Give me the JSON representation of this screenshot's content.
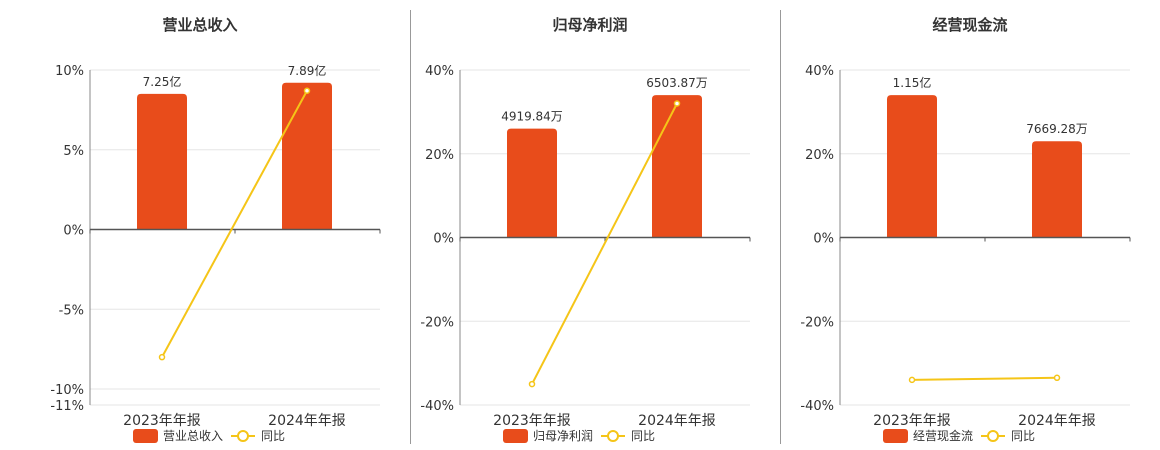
{
  "colors": {
    "bar": "#e84c1b",
    "line": "#f5c518",
    "grid": "#e6e6e6",
    "axis": "#555555",
    "text": "#333333"
  },
  "chart_data": [
    {
      "type": "bar",
      "title": "营业总收入",
      "categories": [
        "2023年年报",
        "2024年年报"
      ],
      "bar_series": {
        "name": "营业总收入",
        "values": [
          8.5,
          9.2
        ],
        "labels": [
          "7.25亿",
          "7.89亿"
        ]
      },
      "line_series": {
        "name": "同比",
        "values": [
          -8.0,
          8.7
        ]
      },
      "yticks": [
        10,
        5,
        0,
        -5,
        -10,
        -11
      ],
      "ytick_labels": [
        "10%",
        "5%",
        "0%",
        "-5%",
        "-10%",
        "-11%"
      ],
      "ylim": [
        -11,
        10
      ],
      "grid": true,
      "legend": "bottom"
    },
    {
      "type": "bar",
      "title": "归母净利润",
      "categories": [
        "2023年年报",
        "2024年年报"
      ],
      "bar_series": {
        "name": "归母净利润",
        "values": [
          26,
          34
        ],
        "labels": [
          "4919.84万",
          "6503.87万"
        ]
      },
      "line_series": {
        "name": "同比",
        "values": [
          -35,
          32
        ]
      },
      "yticks": [
        40,
        20,
        0,
        -20,
        -40
      ],
      "ytick_labels": [
        "40%",
        "20%",
        "0%",
        "-20%",
        "-40%"
      ],
      "ylim": [
        -40,
        40
      ],
      "grid": true,
      "legend": "bottom"
    },
    {
      "type": "bar",
      "title": "经营现金流",
      "categories": [
        "2023年年报",
        "2024年年报"
      ],
      "bar_series": {
        "name": "经营现金流",
        "values": [
          34,
          23
        ],
        "labels": [
          "1.15亿",
          "7669.28万"
        ]
      },
      "line_series": {
        "name": "同比",
        "values": [
          -34,
          -33.5
        ]
      },
      "yticks": [
        40,
        20,
        0,
        -20,
        -40
      ],
      "ytick_labels": [
        "40%",
        "20%",
        "0%",
        "-20%",
        "-40%"
      ],
      "ylim": [
        -40,
        40
      ],
      "grid": true,
      "legend": "bottom"
    }
  ]
}
